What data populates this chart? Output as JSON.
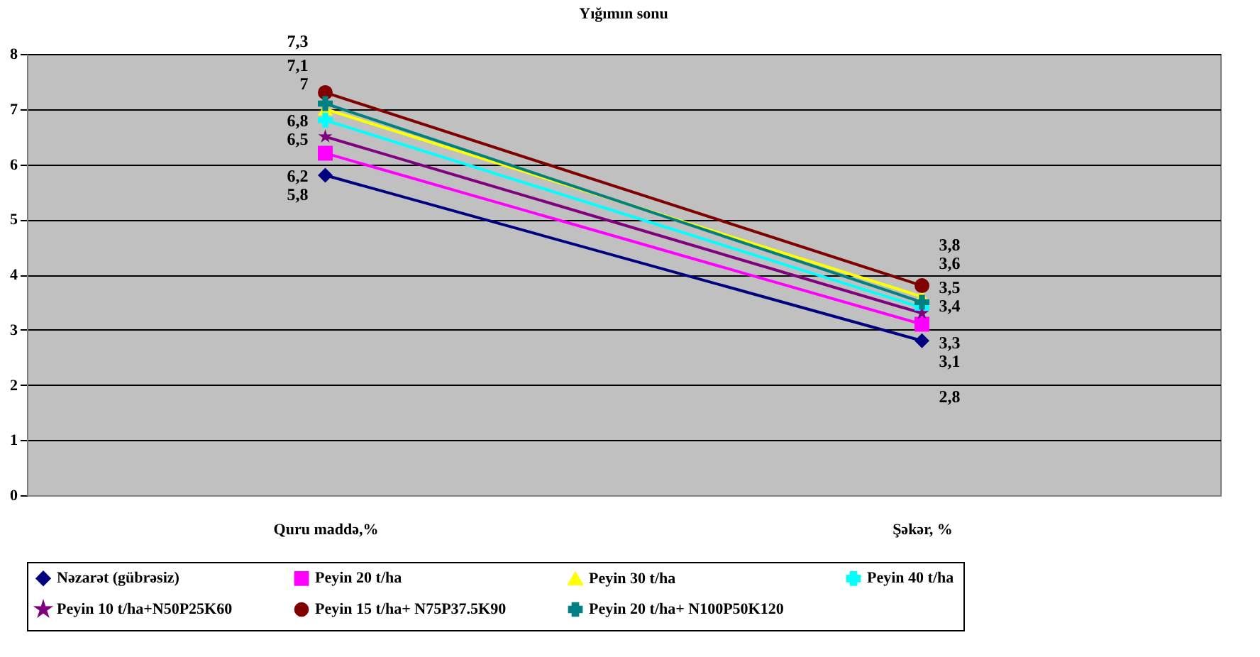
{
  "chart_data": {
    "type": "line",
    "title": "Yığımın sonu",
    "categories": [
      "Quru maddə,%",
      "Şəkər, %"
    ],
    "ylim": [
      0,
      8
    ],
    "yticks": [
      0,
      1,
      2,
      3,
      4,
      5,
      6,
      7,
      8
    ],
    "grid": "y",
    "legend": "bottom",
    "series": [
      {
        "name": "Nəzarət (gübrəsiz)",
        "color": "#000080",
        "marker": "diamond",
        "values": [
          5.8,
          2.8
        ],
        "value_labels": [
          "5,8",
          "2,8"
        ]
      },
      {
        "name": "Peyin 20 t/ha",
        "color": "#ff00ff",
        "marker": "square",
        "values": [
          6.2,
          3.1
        ],
        "value_labels": [
          "6,2",
          "3,1"
        ]
      },
      {
        "name": "Peyin 30 t/ha",
        "color": "#ffff00",
        "marker": "triangle",
        "values": [
          7,
          3.6
        ],
        "value_labels": [
          "7",
          "3,6"
        ]
      },
      {
        "name": "Peyin 40 t/ha",
        "color": "#00ffff",
        "marker": "cross",
        "values": [
          6.8,
          3.4
        ],
        "value_labels": [
          "6,8",
          "3,4"
        ]
      },
      {
        "name": "Peyin 10 t/ha+N50P25K60",
        "color": "#800080",
        "marker": "star",
        "values": [
          6.5,
          3.3
        ],
        "value_labels": [
          "6,5",
          "3,3"
        ]
      },
      {
        "name": "Peyin 15 t/ha+ N75P37.5K90",
        "color": "#800000",
        "marker": "circle",
        "values": [
          7.3,
          3.8
        ],
        "value_labels": [
          "7,3",
          "3,8"
        ]
      },
      {
        "name": "Peyin 20 t/ha+ N100P50K120",
        "color": "#008080",
        "marker": "cross",
        "values": [
          7.1,
          3.5
        ],
        "value_labels": [
          "7,1",
          "3,5"
        ]
      }
    ]
  }
}
